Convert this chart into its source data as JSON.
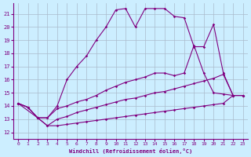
{
  "xlabel": "Windchill (Refroidissement éolien,°C)",
  "bg_color": "#cceeff",
  "line_color": "#800080",
  "grid_color": "#aabbcc",
  "xlim": [
    -0.5,
    23.5
  ],
  "ylim": [
    11.5,
    21.8
  ],
  "yticks": [
    12,
    13,
    14,
    15,
    16,
    17,
    18,
    19,
    20,
    21
  ],
  "xticks": [
    0,
    1,
    2,
    3,
    4,
    5,
    6,
    7,
    8,
    9,
    10,
    11,
    12,
    13,
    14,
    15,
    16,
    17,
    18,
    19,
    20,
    21,
    22,
    23
  ],
  "lines": [
    {
      "x": [
        0,
        1,
        2,
        3,
        4,
        5,
        6,
        7,
        8,
        9,
        10,
        11,
        12,
        13,
        14,
        15,
        16,
        17,
        18,
        19,
        20,
        21,
        22,
        23
      ],
      "y": [
        14.2,
        13.9,
        13.1,
        13.1,
        14.0,
        16.0,
        17.0,
        17.8,
        19.0,
        20.0,
        21.3,
        21.4,
        20.0,
        21.4,
        21.4,
        21.4,
        20.8,
        20.7,
        18.5,
        18.5,
        20.2,
        16.5,
        14.8,
        14.8
      ]
    },
    {
      "x": [
        0,
        2,
        3,
        4,
        5,
        6,
        7,
        8,
        9,
        10,
        11,
        12,
        13,
        14,
        15,
        16,
        17,
        18,
        19,
        20,
        21,
        22,
        23
      ],
      "y": [
        14.2,
        13.1,
        13.1,
        13.8,
        14.0,
        14.3,
        14.5,
        14.8,
        15.2,
        15.5,
        15.8,
        16.0,
        16.2,
        16.5,
        16.5,
        16.3,
        16.5,
        18.6,
        16.5,
        15.0,
        14.9,
        14.8,
        14.8
      ]
    },
    {
      "x": [
        0,
        1,
        2,
        3,
        4,
        5,
        6,
        7,
        8,
        9,
        10,
        11,
        12,
        13,
        14,
        15,
        16,
        17,
        18,
        19,
        20,
        21,
        22,
        23
      ],
      "y": [
        14.2,
        13.9,
        13.1,
        12.5,
        13.0,
        13.2,
        13.5,
        13.7,
        13.9,
        14.1,
        14.3,
        14.5,
        14.6,
        14.8,
        15.0,
        15.1,
        15.3,
        15.5,
        15.7,
        15.9,
        16.1,
        16.4,
        14.8,
        14.8
      ]
    },
    {
      "x": [
        0,
        1,
        2,
        3,
        4,
        5,
        6,
        7,
        8,
        9,
        10,
        11,
        12,
        13,
        14,
        15,
        16,
        17,
        18,
        19,
        20,
        21,
        22,
        23
      ],
      "y": [
        14.2,
        13.9,
        13.1,
        12.5,
        12.5,
        12.6,
        12.7,
        12.8,
        12.9,
        13.0,
        13.1,
        13.2,
        13.3,
        13.4,
        13.5,
        13.6,
        13.7,
        13.8,
        13.9,
        14.0,
        14.1,
        14.2,
        14.8,
        14.8
      ]
    }
  ]
}
